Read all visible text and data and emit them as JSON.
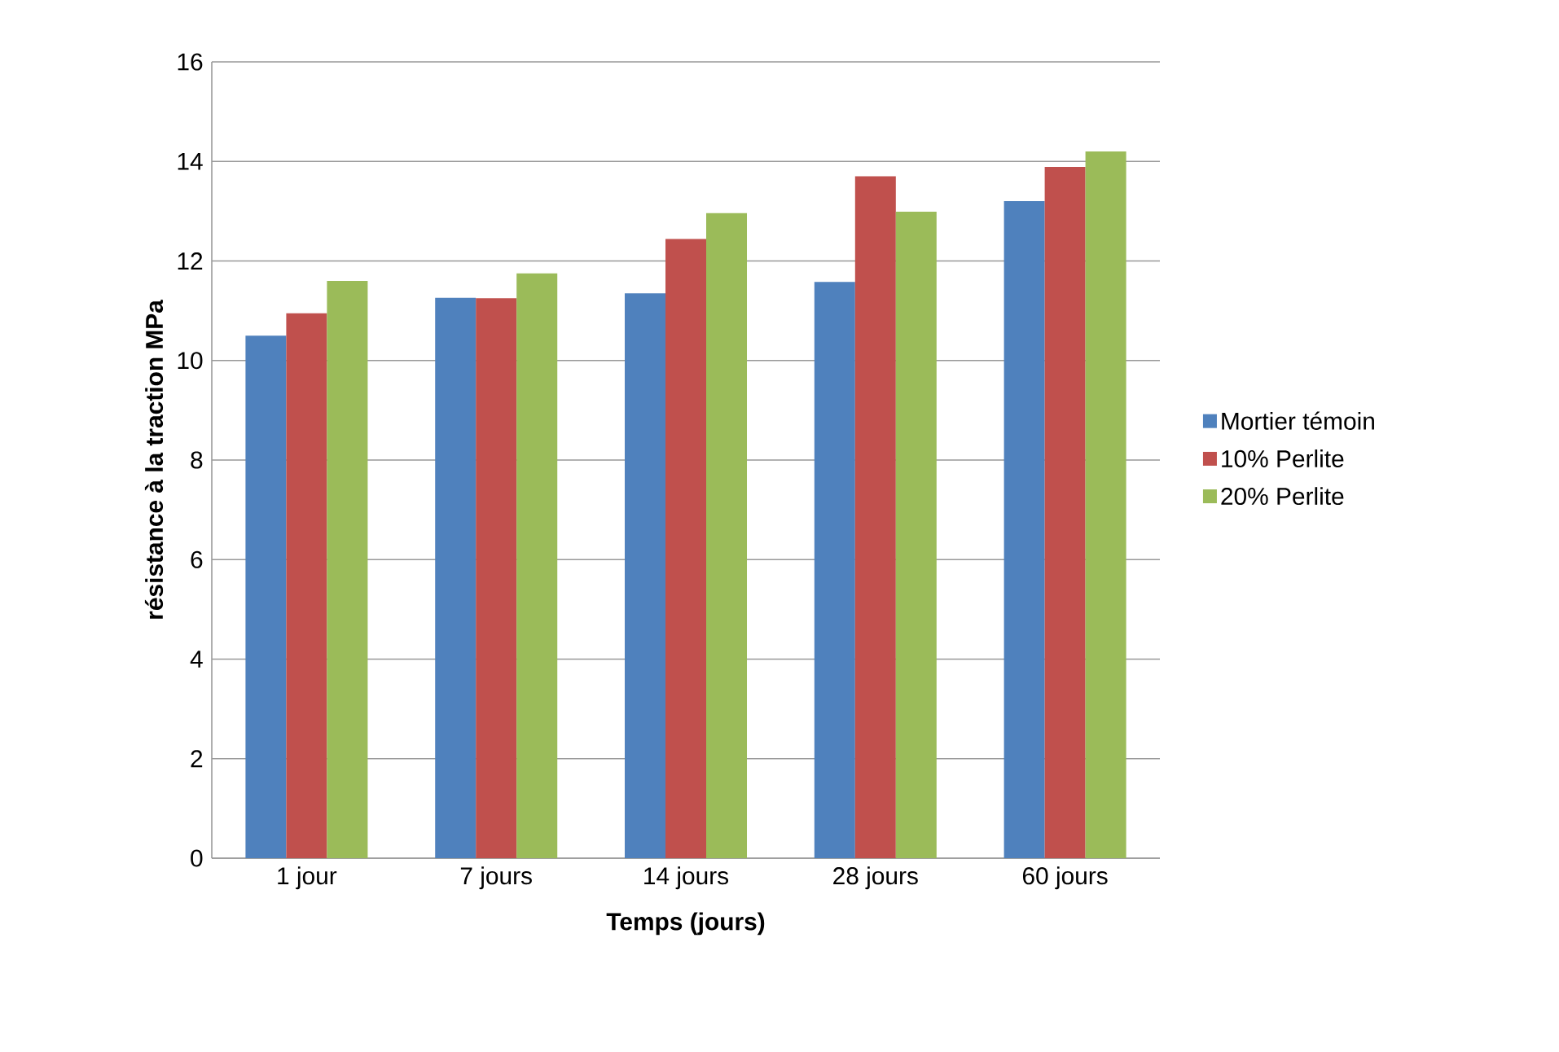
{
  "chart_data": {
    "type": "bar",
    "xlabel": "Temps (jours)",
    "ylabel": "résistance à la traction MPa",
    "categories": [
      "1 jour",
      "7 jours",
      "14 jours",
      "28 jours",
      "60 jours"
    ],
    "series": [
      {
        "name": "Mortier témoin",
        "color": "#4f81bd",
        "values": [
          10.5,
          11.26,
          11.35,
          11.58,
          13.2
        ]
      },
      {
        "name": "10% Perlite",
        "color": "#c0504d",
        "values": [
          10.95,
          11.25,
          12.44,
          13.7,
          13.89
        ]
      },
      {
        "name": "20% Perlite",
        "color": "#9bbb59",
        "values": [
          11.6,
          11.75,
          12.96,
          12.99,
          14.2
        ]
      }
    ],
    "ylim": [
      0,
      16
    ],
    "yticks": [
      0,
      2,
      4,
      6,
      8,
      10,
      12,
      14,
      16
    ],
    "grid": "y",
    "legend": "right"
  }
}
